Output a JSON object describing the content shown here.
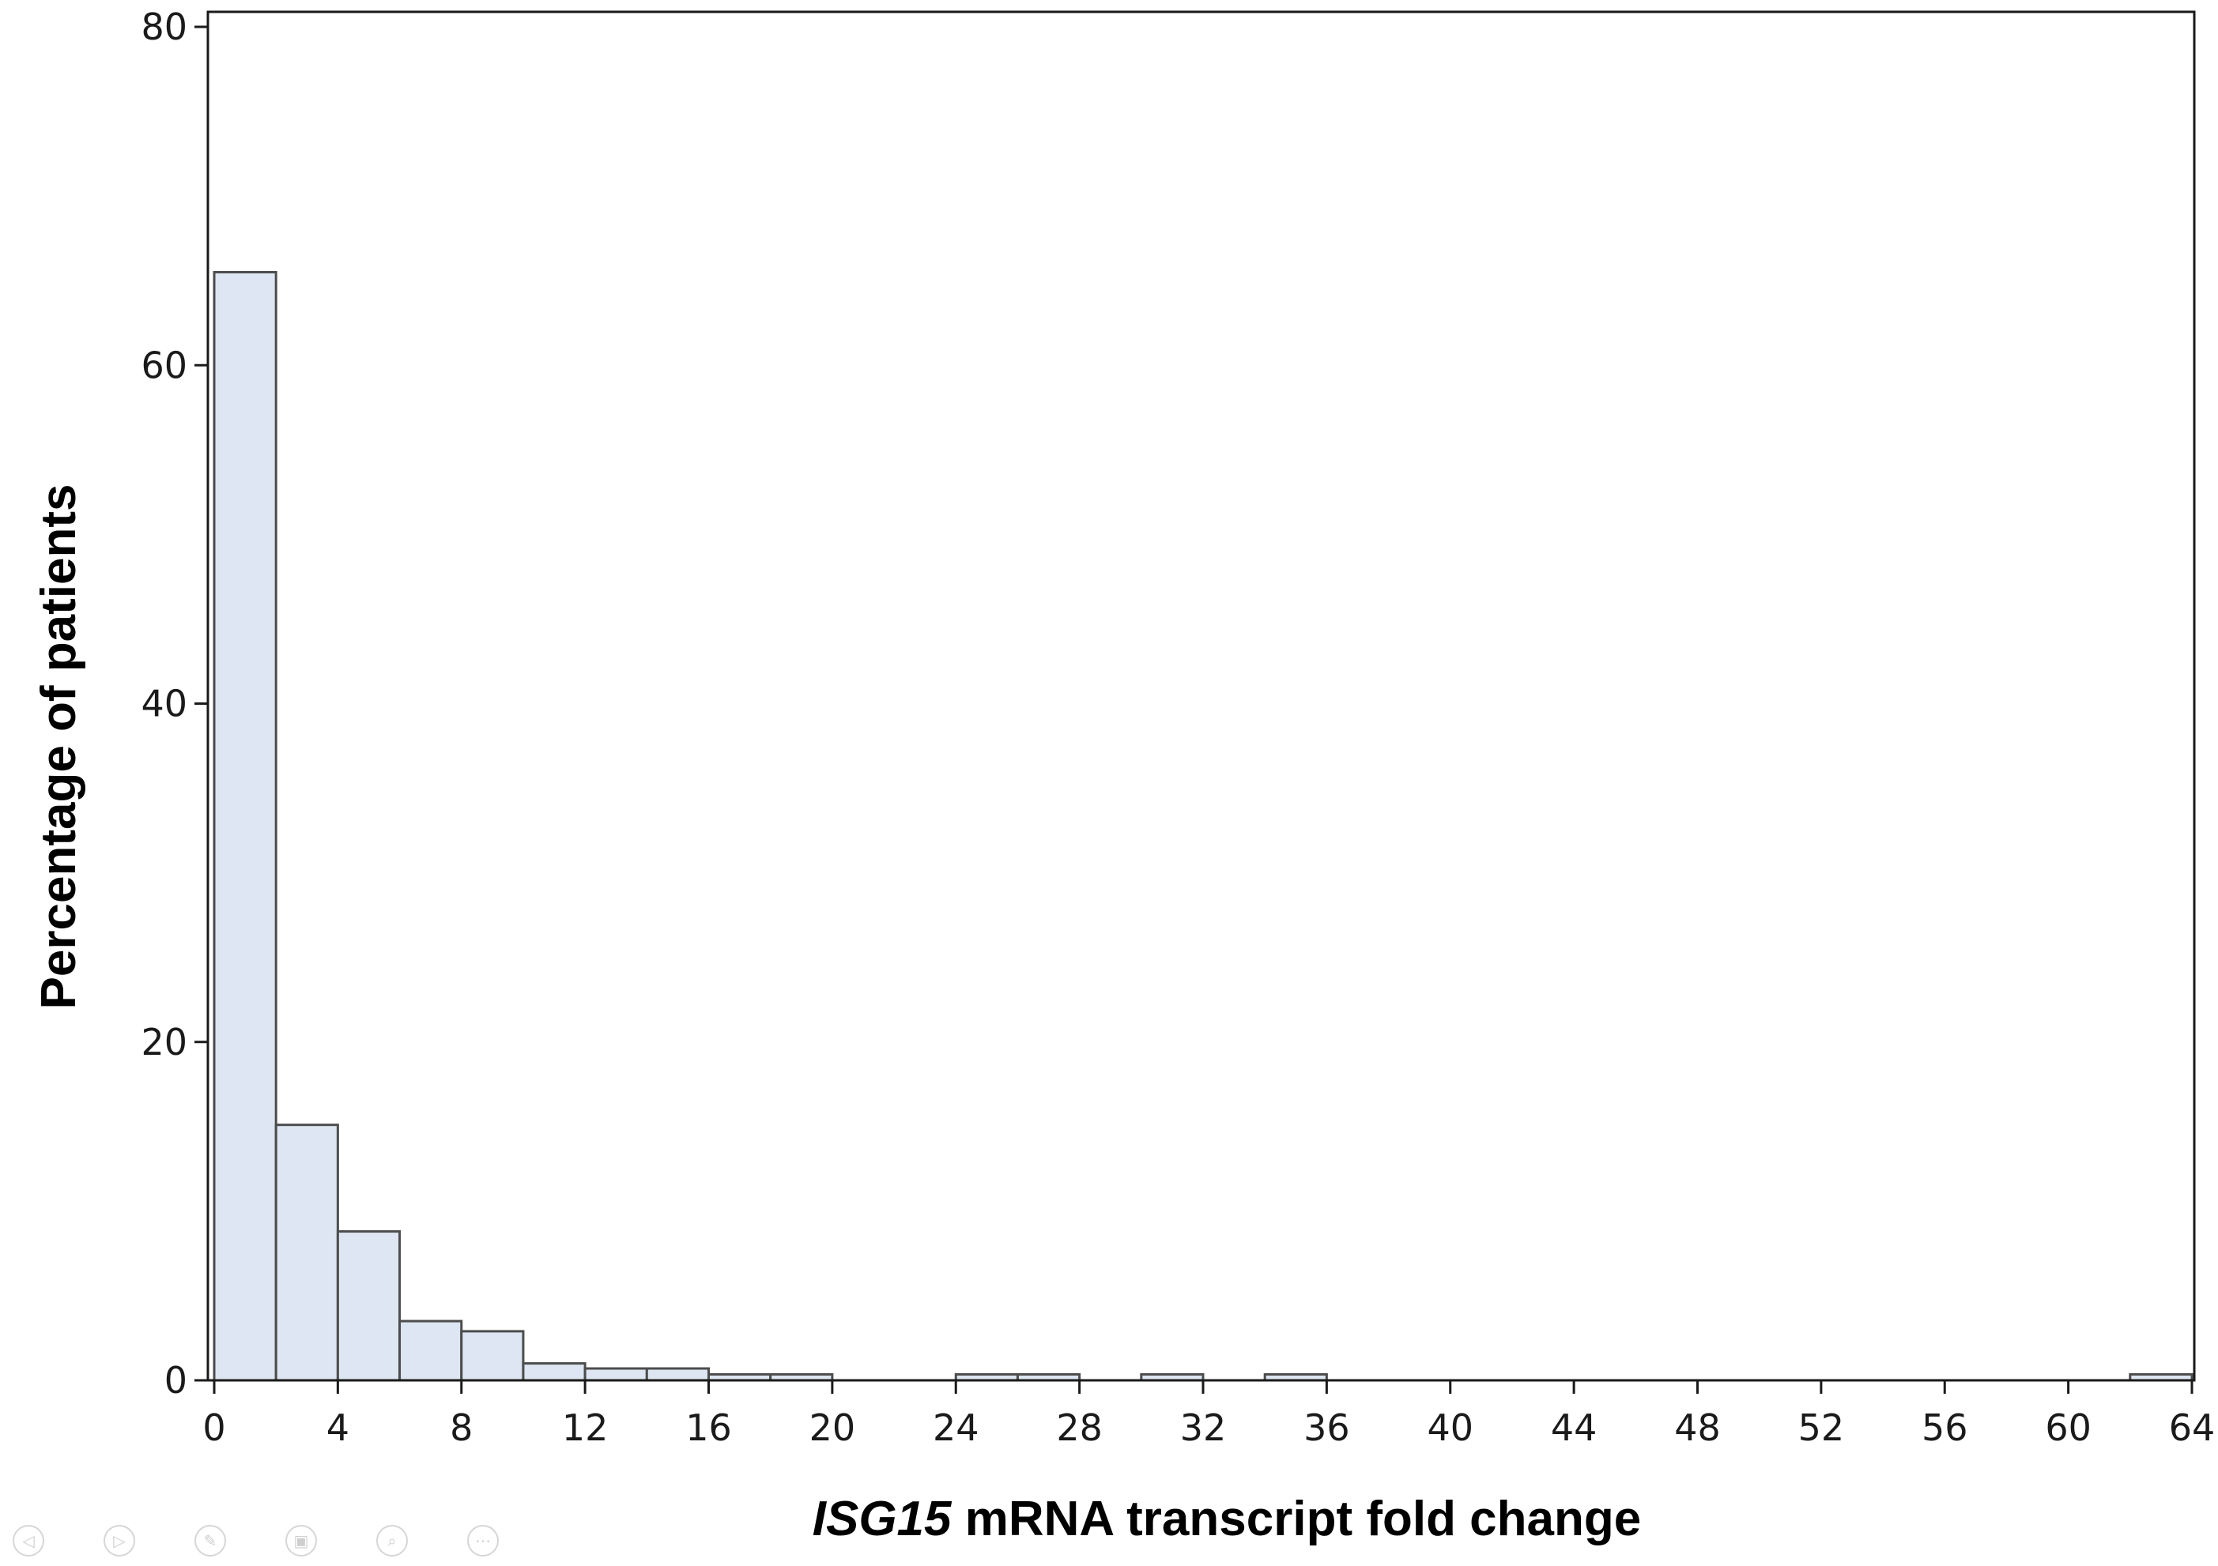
{
  "chart_data": {
    "type": "bar",
    "bins": [
      {
        "start": 0,
        "end": 2,
        "value": 65.5
      },
      {
        "start": 2,
        "end": 4,
        "value": 15.1
      },
      {
        "start": 4,
        "end": 6,
        "value": 8.8
      },
      {
        "start": 6,
        "end": 8,
        "value": 3.5
      },
      {
        "start": 8,
        "end": 10,
        "value": 2.9
      },
      {
        "start": 10,
        "end": 12,
        "value": 1.0
      },
      {
        "start": 12,
        "end": 14,
        "value": 0.7
      },
      {
        "start": 14,
        "end": 16,
        "value": 0.7
      },
      {
        "start": 16,
        "end": 18,
        "value": 0.35
      },
      {
        "start": 18,
        "end": 20,
        "value": 0.35
      },
      {
        "start": 24,
        "end": 26,
        "value": 0.35
      },
      {
        "start": 26,
        "end": 28,
        "value": 0.35
      },
      {
        "start": 30,
        "end": 32,
        "value": 0.35
      },
      {
        "start": 34,
        "end": 36,
        "value": 0.35
      },
      {
        "start": 62,
        "end": 64,
        "value": 0.35
      }
    ],
    "xlabel": {
      "italic_part": "ISG15",
      "rest": " mRNA transcript fold change"
    },
    "ylabel": "Percentage of patients",
    "xlim": [
      0,
      64
    ],
    "ylim": [
      0,
      80
    ],
    "xticks": [
      "0",
      "4",
      "8",
      "12",
      "16",
      "20",
      "24",
      "28",
      "32",
      "36",
      "40",
      "44",
      "48",
      "52",
      "56",
      "60",
      "64"
    ],
    "yticks": [
      "0",
      "20",
      "40",
      "60",
      "80"
    ],
    "grid": false,
    "colors": {
      "bar_fill": "#dde6f2",
      "bar_edge": "#4d4d4d",
      "axis": "#1a1a1a"
    }
  },
  "toolbar": {
    "buttons": [
      {
        "name": "previous-slide-button",
        "icon": "arrow-left-icon",
        "glyph": "◁"
      },
      {
        "name": "next-slide-button",
        "icon": "arrow-right-icon",
        "glyph": "▷"
      },
      {
        "name": "pen-tool-button",
        "icon": "pen-icon",
        "glyph": "✎"
      },
      {
        "name": "slides-view-button",
        "icon": "slides-icon",
        "glyph": "▣"
      },
      {
        "name": "zoom-button",
        "icon": "magnifier-icon",
        "glyph": "⌕"
      },
      {
        "name": "more-options-button",
        "icon": "ellipsis-icon",
        "glyph": "⋯"
      }
    ]
  }
}
